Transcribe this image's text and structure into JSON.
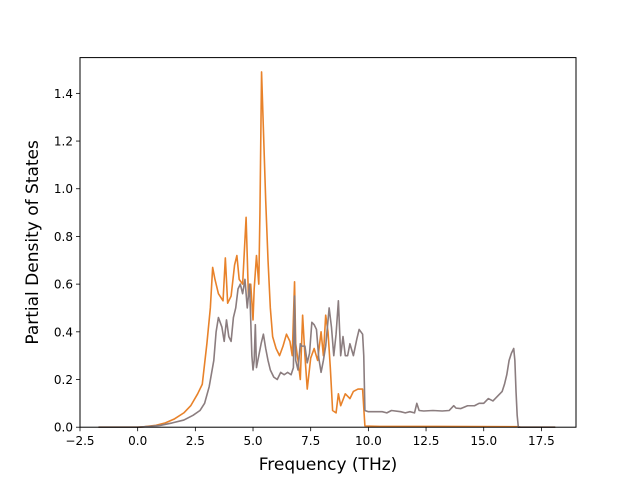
{
  "chart_data": {
    "type": "line",
    "title": "",
    "xlabel": "Frequency (THz)",
    "ylabel": "Partial Density of States",
    "xlim": [
      -2.5,
      19.0
    ],
    "ylim": [
      0.0,
      1.55
    ],
    "xticks": [
      -2.5,
      0.0,
      2.5,
      5.0,
      7.5,
      10.0,
      12.5,
      15.0,
      17.5
    ],
    "xtick_labels": [
      "−2.5",
      "0.0",
      "2.5",
      "5.0",
      "7.5",
      "10.0",
      "12.5",
      "15.0",
      "17.5"
    ],
    "yticks": [
      0.0,
      0.2,
      0.4,
      0.6,
      0.8,
      1.0,
      1.2,
      1.4
    ],
    "ytick_labels": [
      "0.0",
      "0.2",
      "0.4",
      "0.6",
      "0.8",
      "1.0",
      "1.2",
      "1.4"
    ],
    "grid": false,
    "legend": "none",
    "series": [
      {
        "color": "#e8822a",
        "points": [
          [
            -1.7,
            0
          ],
          [
            0,
            0
          ],
          [
            0.3,
            0.002
          ],
          [
            0.8,
            0.008
          ],
          [
            1.2,
            0.018
          ],
          [
            1.6,
            0.035
          ],
          [
            2.0,
            0.06
          ],
          [
            2.3,
            0.09
          ],
          [
            2.6,
            0.14
          ],
          [
            2.8,
            0.18
          ],
          [
            3.0,
            0.35
          ],
          [
            3.15,
            0.5
          ],
          [
            3.25,
            0.67
          ],
          [
            3.35,
            0.62
          ],
          [
            3.5,
            0.56
          ],
          [
            3.7,
            0.53
          ],
          [
            3.8,
            0.71
          ],
          [
            3.9,
            0.52
          ],
          [
            4.05,
            0.55
          ],
          [
            4.2,
            0.68
          ],
          [
            4.3,
            0.72
          ],
          [
            4.4,
            0.62
          ],
          [
            4.55,
            0.6
          ],
          [
            4.7,
            0.88
          ],
          [
            4.8,
            0.55
          ],
          [
            4.9,
            0.6
          ],
          [
            5.0,
            0.45
          ],
          [
            5.05,
            0.58
          ],
          [
            5.15,
            0.72
          ],
          [
            5.25,
            0.6
          ],
          [
            5.3,
            0.9
          ],
          [
            5.37,
            1.49
          ],
          [
            5.45,
            1.25
          ],
          [
            5.55,
            0.95
          ],
          [
            5.65,
            0.7
          ],
          [
            5.75,
            0.5
          ],
          [
            5.85,
            0.38
          ],
          [
            6.0,
            0.33
          ],
          [
            6.15,
            0.3
          ],
          [
            6.3,
            0.34
          ],
          [
            6.45,
            0.39
          ],
          [
            6.6,
            0.36
          ],
          [
            6.7,
            0.3
          ],
          [
            6.8,
            0.61
          ],
          [
            6.85,
            0.35
          ],
          [
            6.95,
            0.28
          ],
          [
            7.05,
            0.2
          ],
          [
            7.15,
            0.47
          ],
          [
            7.25,
            0.3
          ],
          [
            7.35,
            0.16
          ],
          [
            7.5,
            0.29
          ],
          [
            7.65,
            0.33
          ],
          [
            7.8,
            0.28
          ],
          [
            7.95,
            0.4
          ],
          [
            8.05,
            0.3
          ],
          [
            8.15,
            0.47
          ],
          [
            8.25,
            0.4
          ],
          [
            8.35,
            0.25
          ],
          [
            8.45,
            0.07
          ],
          [
            8.6,
            0.06
          ],
          [
            8.7,
            0.14
          ],
          [
            8.8,
            0.09
          ],
          [
            9.0,
            0.14
          ],
          [
            9.2,
            0.12
          ],
          [
            9.35,
            0.15
          ],
          [
            9.55,
            0.16
          ],
          [
            9.75,
            0.16
          ],
          [
            9.85,
            0.005
          ],
          [
            10.5,
            0.003
          ],
          [
            13.0,
            0.003
          ],
          [
            16.5,
            0.002
          ],
          [
            16.6,
            0
          ],
          [
            18.1,
            0
          ]
        ]
      },
      {
        "color": "#8b7d7f",
        "points": [
          [
            -1.7,
            0
          ],
          [
            0,
            0
          ],
          [
            0.5,
            0.003
          ],
          [
            1.0,
            0.008
          ],
          [
            1.5,
            0.018
          ],
          [
            2.0,
            0.03
          ],
          [
            2.4,
            0.05
          ],
          [
            2.7,
            0.07
          ],
          [
            2.9,
            0.1
          ],
          [
            3.1,
            0.17
          ],
          [
            3.3,
            0.28
          ],
          [
            3.4,
            0.4
          ],
          [
            3.5,
            0.46
          ],
          [
            3.65,
            0.42
          ],
          [
            3.75,
            0.36
          ],
          [
            3.85,
            0.45
          ],
          [
            3.95,
            0.38
          ],
          [
            4.05,
            0.36
          ],
          [
            4.15,
            0.46
          ],
          [
            4.25,
            0.5
          ],
          [
            4.35,
            0.58
          ],
          [
            4.45,
            0.6
          ],
          [
            4.55,
            0.56
          ],
          [
            4.65,
            0.62
          ],
          [
            4.75,
            0.5
          ],
          [
            4.85,
            0.6
          ],
          [
            4.95,
            0.3
          ],
          [
            5.0,
            0.24
          ],
          [
            5.05,
            0.28
          ],
          [
            5.1,
            0.43
          ],
          [
            5.15,
            0.25
          ],
          [
            5.25,
            0.3
          ],
          [
            5.35,
            0.35
          ],
          [
            5.45,
            0.39
          ],
          [
            5.55,
            0.33
          ],
          [
            5.65,
            0.28
          ],
          [
            5.75,
            0.24
          ],
          [
            5.9,
            0.21
          ],
          [
            6.05,
            0.2
          ],
          [
            6.2,
            0.23
          ],
          [
            6.35,
            0.22
          ],
          [
            6.5,
            0.23
          ],
          [
            6.65,
            0.22
          ],
          [
            6.75,
            0.25
          ],
          [
            6.8,
            0.55
          ],
          [
            6.85,
            0.28
          ],
          [
            6.95,
            0.24
          ],
          [
            7.05,
            0.35
          ],
          [
            7.1,
            0.34
          ],
          [
            7.25,
            0.34
          ],
          [
            7.35,
            0.27
          ],
          [
            7.45,
            0.31
          ],
          [
            7.55,
            0.44
          ],
          [
            7.65,
            0.43
          ],
          [
            7.75,
            0.41
          ],
          [
            7.85,
            0.29
          ],
          [
            7.95,
            0.23
          ],
          [
            8.05,
            0.28
          ],
          [
            8.15,
            0.34
          ],
          [
            8.3,
            0.5
          ],
          [
            8.4,
            0.42
          ],
          [
            8.5,
            0.3
          ],
          [
            8.6,
            0.39
          ],
          [
            8.7,
            0.53
          ],
          [
            8.8,
            0.3
          ],
          [
            8.9,
            0.38
          ],
          [
            9.0,
            0.3
          ],
          [
            9.1,
            0.3
          ],
          [
            9.2,
            0.35
          ],
          [
            9.35,
            0.3
          ],
          [
            9.5,
            0.37
          ],
          [
            9.6,
            0.41
          ],
          [
            9.75,
            0.39
          ],
          [
            9.8,
            0.3
          ],
          [
            9.85,
            0.07
          ],
          [
            10.0,
            0.065
          ],
          [
            10.6,
            0.065
          ],
          [
            10.8,
            0.06
          ],
          [
            11.0,
            0.07
          ],
          [
            11.4,
            0.065
          ],
          [
            11.6,
            0.06
          ],
          [
            11.8,
            0.065
          ],
          [
            12.0,
            0.06
          ],
          [
            12.1,
            0.1
          ],
          [
            12.2,
            0.07
          ],
          [
            12.4,
            0.068
          ],
          [
            12.8,
            0.07
          ],
          [
            13.2,
            0.068
          ],
          [
            13.5,
            0.07
          ],
          [
            13.7,
            0.09
          ],
          [
            13.8,
            0.08
          ],
          [
            14.0,
            0.078
          ],
          [
            14.3,
            0.09
          ],
          [
            14.6,
            0.09
          ],
          [
            14.8,
            0.1
          ],
          [
            15.0,
            0.1
          ],
          [
            15.2,
            0.12
          ],
          [
            15.4,
            0.11
          ],
          [
            15.6,
            0.13
          ],
          [
            15.8,
            0.15
          ],
          [
            15.9,
            0.18
          ],
          [
            16.0,
            0.22
          ],
          [
            16.1,
            0.28
          ],
          [
            16.2,
            0.31
          ],
          [
            16.3,
            0.33
          ],
          [
            16.35,
            0.28
          ],
          [
            16.4,
            0.15
          ],
          [
            16.45,
            0.05
          ],
          [
            16.5,
            0
          ],
          [
            18.1,
            0
          ]
        ]
      }
    ]
  }
}
